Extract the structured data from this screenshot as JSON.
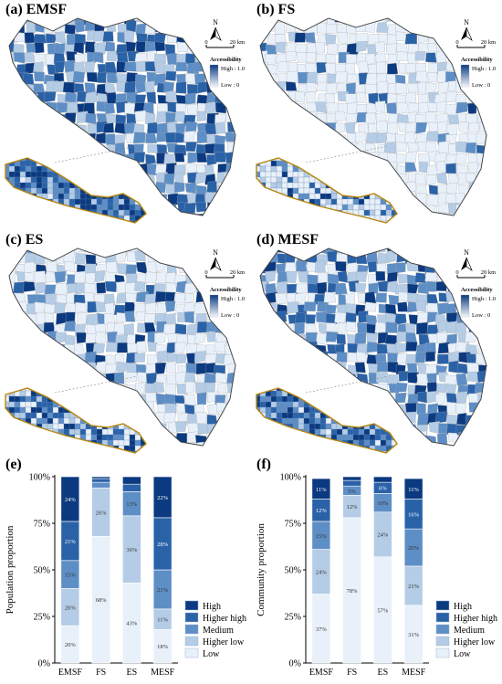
{
  "colors": {
    "high": "#0b3a80",
    "higher_high": "#2a62a8",
    "medium": "#5e8ec6",
    "higher_low": "#b4cce6",
    "low": "#e8f0fa",
    "district_border": "#a8a8a8",
    "inset_border": "#b8860b"
  },
  "maps": [
    {
      "id": "a",
      "title": "(a) EMSF",
      "north": "N",
      "scale_zero": "0",
      "scale_label": "20 km",
      "legend_title": "Accessibility",
      "legend_high": "High : 1.0",
      "legend_low": "Low : 0",
      "density": "high"
    },
    {
      "id": "b",
      "title": "(b) FS",
      "north": "N",
      "scale_zero": "0",
      "scale_label": "20 km",
      "legend_title": "Accessibility",
      "legend_high": "High : 1.0",
      "legend_low": "Low : 0",
      "density": "sparse"
    },
    {
      "id": "c",
      "title": "(c) ES",
      "north": "N",
      "scale_zero": "0",
      "scale_label": "20 km",
      "legend_title": "Accessibility",
      "legend_high": "High : 1.0",
      "legend_low": "Low : 0",
      "density": "patchy"
    },
    {
      "id": "d",
      "title": "(d) MESF",
      "north": "N",
      "scale_zero": "0",
      "scale_label": "20 km",
      "legend_title": "Accessibility",
      "legend_high": "High : 1.0",
      "legend_low": "Low : 0",
      "density": "medium"
    }
  ],
  "chart_data": [
    {
      "type": "bar",
      "stacked": true,
      "title": "(e)",
      "ylabel": "Population proportion",
      "categories": [
        "EMSF",
        "FS",
        "ES",
        "MESF"
      ],
      "yticks": [
        "0%",
        "25%",
        "50%",
        "75%",
        "100%"
      ],
      "ylim": [
        0,
        100
      ],
      "series": [
        {
          "name": "Low",
          "values": [
            20,
            68,
            43,
            18
          ],
          "labels": [
            "20%",
            "68%",
            "43%",
            "18%"
          ]
        },
        {
          "name": "Higher low",
          "values": [
            20,
            26,
            36,
            11
          ],
          "labels": [
            "20%",
            "26%",
            "36%",
            "11%"
          ]
        },
        {
          "name": "Medium",
          "values": [
            15,
            3,
            13,
            21
          ],
          "labels": [
            "15%",
            "",
            "13%",
            "21%"
          ]
        },
        {
          "name": "Higher high",
          "values": [
            21,
            2,
            4,
            28
          ],
          "labels": [
            "21%",
            "",
            "",
            "28%"
          ]
        },
        {
          "name": "High",
          "values": [
            24,
            1,
            4,
            22
          ],
          "labels": [
            "24%",
            "",
            "",
            "22%"
          ]
        }
      ],
      "legend": [
        "High",
        "Higher high",
        "Medium",
        "Higher low",
        "Low"
      ],
      "legend_position": "right"
    },
    {
      "type": "bar",
      "stacked": true,
      "title": "(f)",
      "ylabel": "Community proportion",
      "categories": [
        "EMSF",
        "FS",
        "ES",
        "MESF"
      ],
      "yticks": [
        "0%",
        "25%",
        "50%",
        "75%",
        "100%"
      ],
      "ylim": [
        0,
        100
      ],
      "series": [
        {
          "name": "Low",
          "values": [
            37,
            78,
            57,
            31
          ],
          "labels": [
            "37%",
            "78%",
            "57%",
            "31%"
          ]
        },
        {
          "name": "Higher low",
          "values": [
            24,
            12,
            24,
            21
          ],
          "labels": [
            "24%",
            "12%",
            "24%",
            "21%"
          ]
        },
        {
          "name": "Medium",
          "values": [
            15,
            5,
            10,
            20
          ],
          "labels": [
            "15%",
            "5%",
            "10%",
            "20%"
          ]
        },
        {
          "name": "Higher high",
          "values": [
            12,
            3,
            6,
            16
          ],
          "labels": [
            "12%",
            "",
            "6%",
            "16%"
          ]
        },
        {
          "name": "High",
          "values": [
            11,
            2,
            3,
            11
          ],
          "labels": [
            "11%",
            "",
            "",
            "11%"
          ]
        }
      ],
      "legend": [
        "High",
        "Higher high",
        "Medium",
        "Higher low",
        "Low"
      ],
      "legend_position": "right"
    }
  ]
}
